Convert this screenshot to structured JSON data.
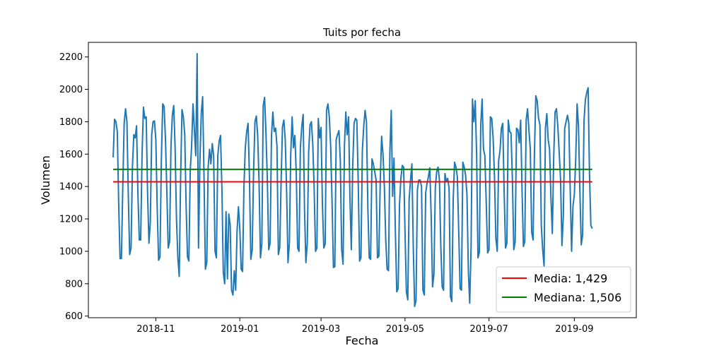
{
  "chart_data": {
    "type": "line",
    "title": "Tuits por fecha",
    "xlabel": "Fecha",
    "ylabel": "Volumen",
    "x_start": "2018-10-01",
    "x_end": "2019-09-28",
    "xlim": [
      "2018-09-13",
      "2019-10-16"
    ],
    "ylim": [
      590,
      2290
    ],
    "x_ticks": [
      "2018-11",
      "2019-01",
      "2019-03",
      "2019-05",
      "2019-07",
      "2019-09"
    ],
    "y_ticks": [
      "600",
      "800",
      "1000",
      "1200",
      "1400",
      "1600",
      "1800",
      "2000",
      "2200"
    ],
    "grid": false,
    "legend_position": "lower right",
    "series": [
      {
        "name": "volumen",
        "color": "#1f77b4",
        "values": [
          1580,
          1815,
          1800,
          1740,
          1300,
          955,
          955,
          1400,
          1790,
          1880,
          1800,
          1350,
          980,
          1020,
          1520,
          1720,
          1700,
          1775,
          1350,
          1070,
          1070,
          1600,
          1890,
          1820,
          1830,
          1360,
          1050,
          1180,
          1720,
          1800,
          1805,
          1690,
          1270,
          945,
          965,
          1560,
          1910,
          1895,
          1690,
          1370,
          1020,
          1060,
          1650,
          1840,
          1900,
          1640,
          1200,
          960,
          845,
          1450,
          1875,
          1830,
          1720,
          1280,
          965,
          940,
          1500,
          1650,
          1910,
          1750,
          1590,
          2220,
          1020,
          1550,
          1850,
          1955,
          1460,
          890,
          930,
          1520,
          1630,
          1540,
          1665,
          1590,
          1000,
          960,
          1590,
          1680,
          1715,
          1390,
          870,
          800,
          1245,
          830,
          1230,
          1160,
          760,
          730,
          880,
          760,
          1125,
          1275,
          1140,
          890,
          875,
          1400,
          1640,
          1740,
          1790,
          1460,
          950,
          1010,
          1490,
          1800,
          1835,
          1710,
          1420,
          960,
          1050,
          1900,
          1950,
          1730,
          1440,
          1010,
          1050,
          1710,
          1860,
          1740,
          1760,
          1650,
          980,
          1025,
          1430,
          1770,
          1810,
          1690,
          1370,
          930,
          1050,
          1600,
          1830,
          1640,
          1715,
          1480,
          1020,
          1000,
          1640,
          1770,
          1845,
          1260,
          930,
          1050,
          1610,
          1780,
          1800,
          1660,
          1390,
          1000,
          1020,
          1820,
          1700,
          1765,
          1290,
          1020,
          1045,
          1870,
          1910,
          1830,
          1650,
          1310,
          900,
          905,
          1690,
          1720,
          1745,
          1560,
          1010,
          920,
          1650,
          1860,
          1720,
          1830,
          1330,
          1010,
          1520,
          1790,
          1820,
          1810,
          1430,
          940,
          960,
          1620,
          1770,
          1870,
          1800,
          1270,
          960,
          950,
          1570,
          1540,
          1490,
          1440,
          960,
          970,
          1430,
          1710,
          1600,
          1400,
          1070,
          890,
          880,
          1610,
          1870,
          1340,
          1575,
          1120,
          750,
          770,
          1290,
          1450,
          1530,
          1520,
          1120,
          750,
          700,
          1320,
          1440,
          1540,
          1030,
          660,
          695,
          1380,
          1440,
          1440,
          1400,
          760,
          730,
          1360,
          1420,
          1460,
          1515,
          1220,
          780,
          860,
          1390,
          1490,
          1520,
          1440,
          1030,
          780,
          760,
          1480,
          1430,
          1450,
          1390,
          720,
          690,
          1320,
          1550,
          1520,
          1460,
          1130,
          770,
          760,
          1550,
          1520,
          1470,
          1350,
          880,
          680,
          1030,
          1940,
          1800,
          1930,
          1600,
          960,
          995,
          1780,
          1940,
          1630,
          1590,
          1300,
          990,
          1010,
          1830,
          1820,
          1700,
          1460,
          1080,
          1000,
          1560,
          1620,
          1760,
          1790,
          1370,
          1020,
          1050,
          1810,
          1740,
          1730,
          1445,
          1010,
          1060,
          1760,
          1750,
          1670,
          1810,
          1380,
          1030,
          1060,
          1810,
          1880,
          1750,
          1630,
          1120,
          1070,
          1600,
          1960,
          1930,
          1820,
          1780,
          1160,
          1010,
          910,
          1760,
          1850,
          1690,
          1630,
          1330,
          1110,
          1580,
          1860,
          1880,
          1770,
          1610,
          1440,
          1035,
          1220,
          1760,
          1800,
          1840,
          1790,
          1380,
          1000,
          1280,
          1350,
          1570,
          1910,
          1770,
          1380,
          1040,
          1100,
          1800,
          1935,
          1980,
          2010,
          1480,
          1160,
          1140
        ]
      }
    ],
    "hlines": [
      {
        "name": "Media: 1,429",
        "value": 1429,
        "color": "#ff0000"
      },
      {
        "name": "Mediana: 1,506",
        "value": 1506,
        "color": "#008000"
      }
    ]
  }
}
